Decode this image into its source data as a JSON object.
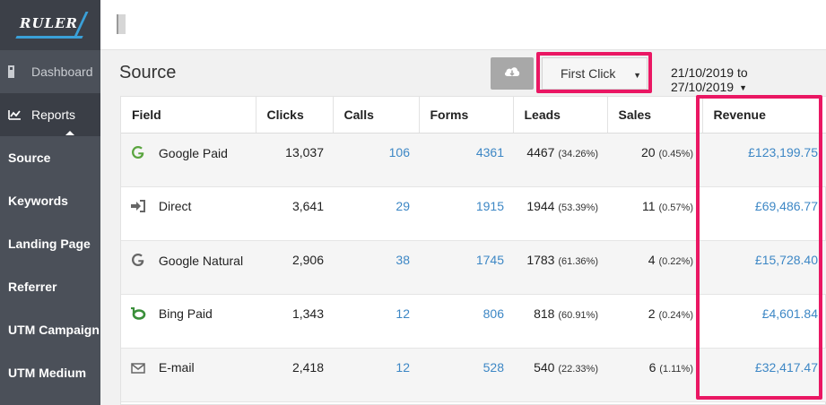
{
  "app": {
    "logo_text": "RULER"
  },
  "sidebar": {
    "dashboard_label": "Dashboard",
    "reports_label": "Reports",
    "sub_items": [
      "Source",
      "Keywords",
      "Landing Page",
      "Referrer",
      "UTM Campaign",
      "UTM Medium"
    ]
  },
  "page": {
    "title": "Source"
  },
  "controls": {
    "attribution_value": "First Click",
    "date_range": "21/10/2019 to 27/10/2019"
  },
  "table": {
    "columns": [
      "Field",
      "Clicks",
      "Calls",
      "Forms",
      "Leads",
      "Sales",
      "Revenue"
    ],
    "rows": [
      {
        "icon": "google-g-icon",
        "field": "Google Paid",
        "clicks": "13,037",
        "calls": "106",
        "forms": "4361",
        "leads": "4467",
        "leads_pct": "(34.26%)",
        "sales": "20",
        "sales_pct": "(0.45%)",
        "revenue": "£123,199.75"
      },
      {
        "icon": "sign-in-arrow-icon",
        "field": "Direct",
        "clicks": "3,641",
        "calls": "29",
        "forms": "1915",
        "leads": "1944",
        "leads_pct": "(53.39%)",
        "sales": "11",
        "sales_pct": "(0.57%)",
        "revenue": "£69,486.77"
      },
      {
        "icon": "google-g-icon",
        "field": "Google Natural",
        "clicks": "2,906",
        "calls": "38",
        "forms": "1745",
        "leads": "1783",
        "leads_pct": "(61.36%)",
        "sales": "4",
        "sales_pct": "(0.22%)",
        "revenue": "£15,728.40"
      },
      {
        "icon": "bing-icon",
        "field": "Bing Paid",
        "clicks": "1,343",
        "calls": "12",
        "forms": "806",
        "leads": "818",
        "leads_pct": "(60.91%)",
        "sales": "2",
        "sales_pct": "(0.24%)",
        "revenue": "£4,601.84"
      },
      {
        "icon": "envelope-icon",
        "field": "E-mail",
        "clicks": "2,418",
        "calls": "12",
        "forms": "528",
        "leads": "540",
        "leads_pct": "(22.33%)",
        "sales": "6",
        "sales_pct": "(1.11%)",
        "revenue": "£32,417.47"
      }
    ]
  },
  "colors": {
    "accent_link": "#3d87c5",
    "highlight": "#ea1763",
    "sidebar": "#4b5059"
  }
}
